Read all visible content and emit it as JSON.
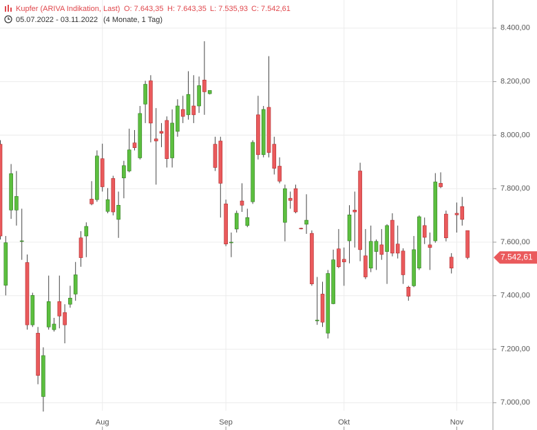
{
  "chart_data": {
    "type": "candlestick",
    "title": "Kupfer (ARIVA Indikation, Last)",
    "ohlc_labels": [
      "O: 7.643,35",
      "H: 7.643,35",
      "L: 7.535,93",
      "C: 7.542,61"
    ],
    "date_range": "05.07.2022 - 03.11.2022",
    "duration": "(4 Monate, 1 Tag)",
    "categories": [
      null,
      null,
      null,
      null,
      null,
      null,
      null,
      null,
      null,
      null,
      null,
      null,
      null,
      null,
      null,
      null,
      null,
      null,
      null,
      "Aug",
      null,
      null,
      null,
      null,
      null,
      null,
      null,
      null,
      null,
      null,
      null,
      null,
      null,
      null,
      null,
      null,
      null,
      null,
      null,
      null,
      null,
      null,
      "Sep",
      null,
      null,
      null,
      null,
      null,
      null,
      null,
      null,
      null,
      null,
      null,
      null,
      null,
      null,
      null,
      null,
      null,
      null,
      null,
      null,
      null,
      "Okt",
      null,
      null,
      null,
      null,
      null,
      null,
      null,
      null,
      null,
      null,
      null,
      null,
      null,
      null,
      null,
      null,
      null,
      null,
      null,
      null,
      "Nov",
      null,
      null
    ],
    "open": [
      7966,
      7439,
      7720,
      7720,
      7603,
      7524,
      7291,
      7260,
      7023,
      7283,
      7273,
      7378,
      7337,
      7368,
      7406,
      7616,
      7623,
      7761,
      7759,
      7912,
      7715,
      7838,
      7685,
      7840,
      7866,
      7971,
      7915,
      8116,
      8203,
      7986,
      8014,
      8055,
      7915,
      8014,
      8096,
      8076,
      8109,
      8109,
      8206,
      8155,
      7966,
      7978,
      7743,
      7598,
      7649,
      7754,
      7662,
      7751,
      8076,
      7927,
      8104,
      7966,
      7884,
      7674,
      7764,
      7800,
      7652,
      7667,
      7633,
      7306,
      7406,
      7260,
      7370,
      7575,
      7536,
      7605,
      7720,
      7866,
      7549,
      7503,
      7565,
      7590,
      7565,
      7682,
      7593,
      7567,
      7432,
      7437,
      7503,
      7662,
      7590,
      7605,
      7820,
      7705,
      7544,
      7708,
      7733,
      7643.35
    ],
    "high": [
      7981,
      7623,
      7892,
      7866,
      7725,
      7554,
      7411,
      7283,
      7207,
      7475,
      7317,
      7475,
      7368,
      7437,
      7526,
      7641,
      7674,
      7828,
      7943,
      7968,
      7802,
      7848,
      7789,
      7904,
      8024,
      8019,
      8109,
      8203,
      8224,
      8101,
      8045,
      8070,
      8096,
      8134,
      8147,
      8239,
      8224,
      8219,
      8351,
      8167,
      7994,
      7994,
      7759,
      7636,
      7718,
      7820,
      7725,
      7981,
      8147,
      8109,
      8295,
      7994,
      7917,
      7815,
      7789,
      7815,
      7654,
      7779,
      7644,
      7470,
      7452,
      7496,
      7572,
      7649,
      7580,
      7738,
      7789,
      7897,
      7649,
      7662,
      7610,
      7649,
      7667,
      7708,
      7662,
      7577,
      7437,
      7623,
      7700,
      7692,
      7636,
      7858,
      7861,
      7718,
      7559,
      7748,
      7769,
      7643.35
    ],
    "low": [
      7610,
      7401,
      7687,
      7662,
      7534,
      7273,
      7283,
      7069,
      6967,
      7273,
      7266,
      7278,
      7222,
      7355,
      7381,
      7508,
      7544,
      7738,
      7751,
      7789,
      7708,
      7700,
      7616,
      7764,
      7861,
      7943,
      7909,
      8045,
      7973,
      7815,
      7955,
      7879,
      7879,
      7994,
      8045,
      8058,
      8045,
      8083,
      8076,
      8152,
      7866,
      7692,
      7585,
      7544,
      7636,
      7713,
      7656,
      7743,
      7909,
      7917,
      7917,
      7853,
      7820,
      7603,
      7725,
      7708,
      7648,
      7631,
      7437,
      7291,
      7283,
      7240,
      7368,
      7503,
      7437,
      7521,
      7580,
      7529,
      7462,
      7488,
      7496,
      7534,
      7444,
      7547,
      7539,
      7444,
      7381,
      7432,
      7496,
      7593,
      7496,
      7598,
      7802,
      7603,
      7483,
      7636,
      7662,
      7535.93
    ],
    "close": [
      7623,
      7598,
      7856,
      7771,
      7605,
      7291,
      7401,
      7102,
      7176,
      7378,
      7294,
      7324,
      7291,
      7391,
      7478,
      7542,
      7659,
      7743,
      7922,
      7807,
      7759,
      7713,
      7738,
      7886,
      7945,
      7953,
      8081,
      8190,
      8045,
      7978,
      8007,
      7912,
      8045,
      8109,
      8070,
      8152,
      8076,
      8185,
      8162,
      8167,
      7879,
      7820,
      7593,
      7600,
      7708,
      7738,
      7692,
      7973,
      7927,
      8096,
      7935,
      7876,
      7828,
      7800,
      7756,
      7713,
      7650,
      7682,
      7444,
      7309,
      7301,
      7483,
      7534,
      7508,
      7526,
      7702,
      7713,
      7572,
      7470,
      7603,
      7603,
      7554,
      7662,
      7559,
      7559,
      7478,
      7398,
      7572,
      7695,
      7618,
      7580,
      7825,
      7807,
      7616,
      7503,
      7702,
      7685,
      7542.61
    ],
    "value_labels": {
      "last_close": "7.542,61"
    },
    "up_color": "#5cbf3f",
    "down_color": "#ea5a5c",
    "ylim": [
      6970,
      8505
    ],
    "yticks": [
      {
        "value": 7000,
        "label": "7.000,00"
      },
      {
        "value": 7200,
        "label": "7.200,00"
      },
      {
        "value": 7400,
        "label": "7.400,00"
      },
      {
        "value": 7600,
        "label": "7.600,00"
      },
      {
        "value": 7800,
        "label": "7.800,00"
      },
      {
        "value": 8000,
        "label": "8.000,00"
      },
      {
        "value": 8200,
        "label": "8.200,00"
      },
      {
        "value": 8400,
        "label": "8.400,00"
      }
    ],
    "grid": true
  }
}
